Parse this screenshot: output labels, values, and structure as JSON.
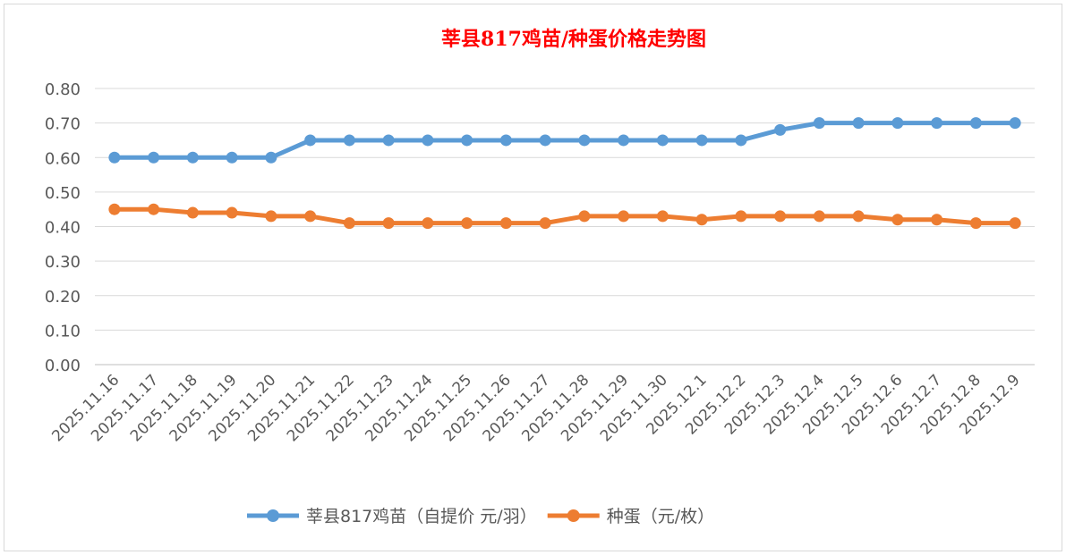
{
  "chart_data": {
    "type": "line",
    "title": "莘县817鸡苗/种蛋价格走势图",
    "title_color": "#ff0000",
    "xlabel": "",
    "ylabel": "",
    "ylim": [
      0,
      0.8
    ],
    "yticks": [
      "0.00",
      "0.10",
      "0.20",
      "0.30",
      "0.40",
      "0.50",
      "0.60",
      "0.70",
      "0.80"
    ],
    "grid": true,
    "legend_position": "bottom",
    "categories": [
      "2025.11.16",
      "2025.11.17",
      "2025.11.18",
      "2025.11.19",
      "2025.11.20",
      "2025.11.21",
      "2025.11.22",
      "2025.11.23",
      "2025.11.24",
      "2025.11.25",
      "2025.11.26",
      "2025.11.27",
      "2025.11.28",
      "2025.11.29",
      "2025.11.30",
      "2025.12.1",
      "2025.12.2",
      "2025.12.3",
      "2025.12.4",
      "2025.12.5",
      "2025.12.6",
      "2025.12.7",
      "2025.12.8",
      "2025.12.9"
    ],
    "series": [
      {
        "name": "莘县817鸡苗（自提价 元/羽）",
        "color": "#5b9bd5",
        "values": [
          0.6,
          0.6,
          0.6,
          0.6,
          0.6,
          0.65,
          0.65,
          0.65,
          0.65,
          0.65,
          0.65,
          0.65,
          0.65,
          0.65,
          0.65,
          0.65,
          0.65,
          0.68,
          0.7,
          0.7,
          0.7,
          0.7,
          0.7,
          0.7
        ]
      },
      {
        "name": "种蛋（元/枚）",
        "color": "#ed7d31",
        "values": [
          0.45,
          0.45,
          0.44,
          0.44,
          0.43,
          0.43,
          0.41,
          0.41,
          0.41,
          0.41,
          0.41,
          0.41,
          0.43,
          0.43,
          0.43,
          0.42,
          0.43,
          0.43,
          0.43,
          0.43,
          0.42,
          0.42,
          0.41,
          0.41
        ]
      }
    ]
  }
}
